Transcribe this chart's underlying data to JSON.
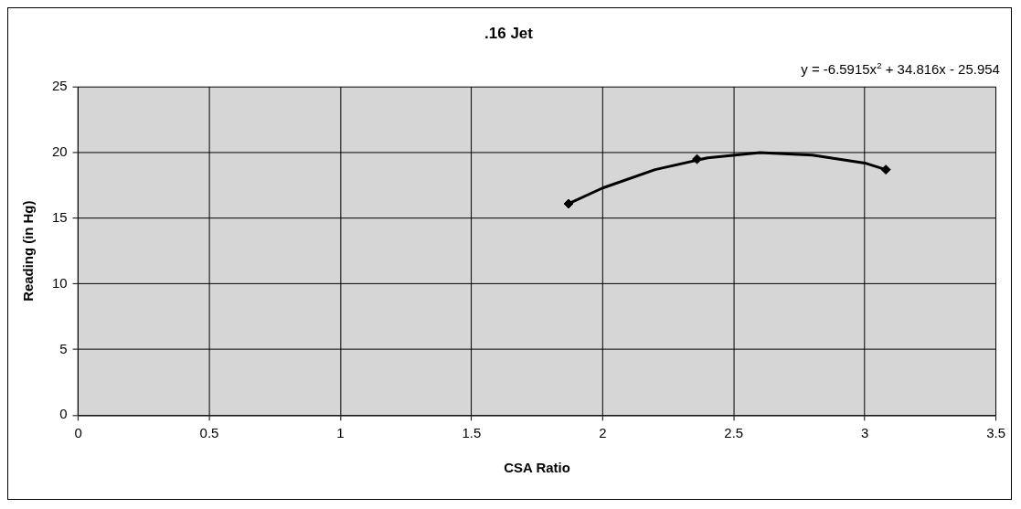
{
  "chart_data": {
    "type": "scatter",
    "title": ".16 Jet",
    "xlabel": "CSA Ratio",
    "ylabel": "Reading (in Hg)",
    "annotations": [
      "y = -6.5915x$^{2}$ + 34.816x - 25.954"
    ],
    "x": [
      1.87,
      2.36,
      3.08
    ],
    "series": [
      {
        "type": "scatter",
        "color": "#000000",
        "marker": "diamond",
        "values": [
          16.1,
          19.5,
          18.7
        ]
      },
      {
        "type": "line",
        "color": "#000000",
        "marker": "none",
        "x": [
          1.87,
          2.0,
          2.2,
          2.4,
          2.6,
          2.8,
          3.0,
          3.08
        ],
        "values": [
          16.1,
          17.3,
          18.7,
          19.6,
          20.0,
          19.8,
          19.2,
          18.7
        ]
      }
    ],
    "xlim": [
      0,
      3.5
    ],
    "xticks": [
      0,
      0.5,
      1,
      1.5,
      2,
      2.5,
      3,
      3.5
    ],
    "ylim": [
      0,
      25
    ],
    "yticks": [
      0,
      5,
      10,
      15,
      20,
      25
    ],
    "grid": true
  }
}
